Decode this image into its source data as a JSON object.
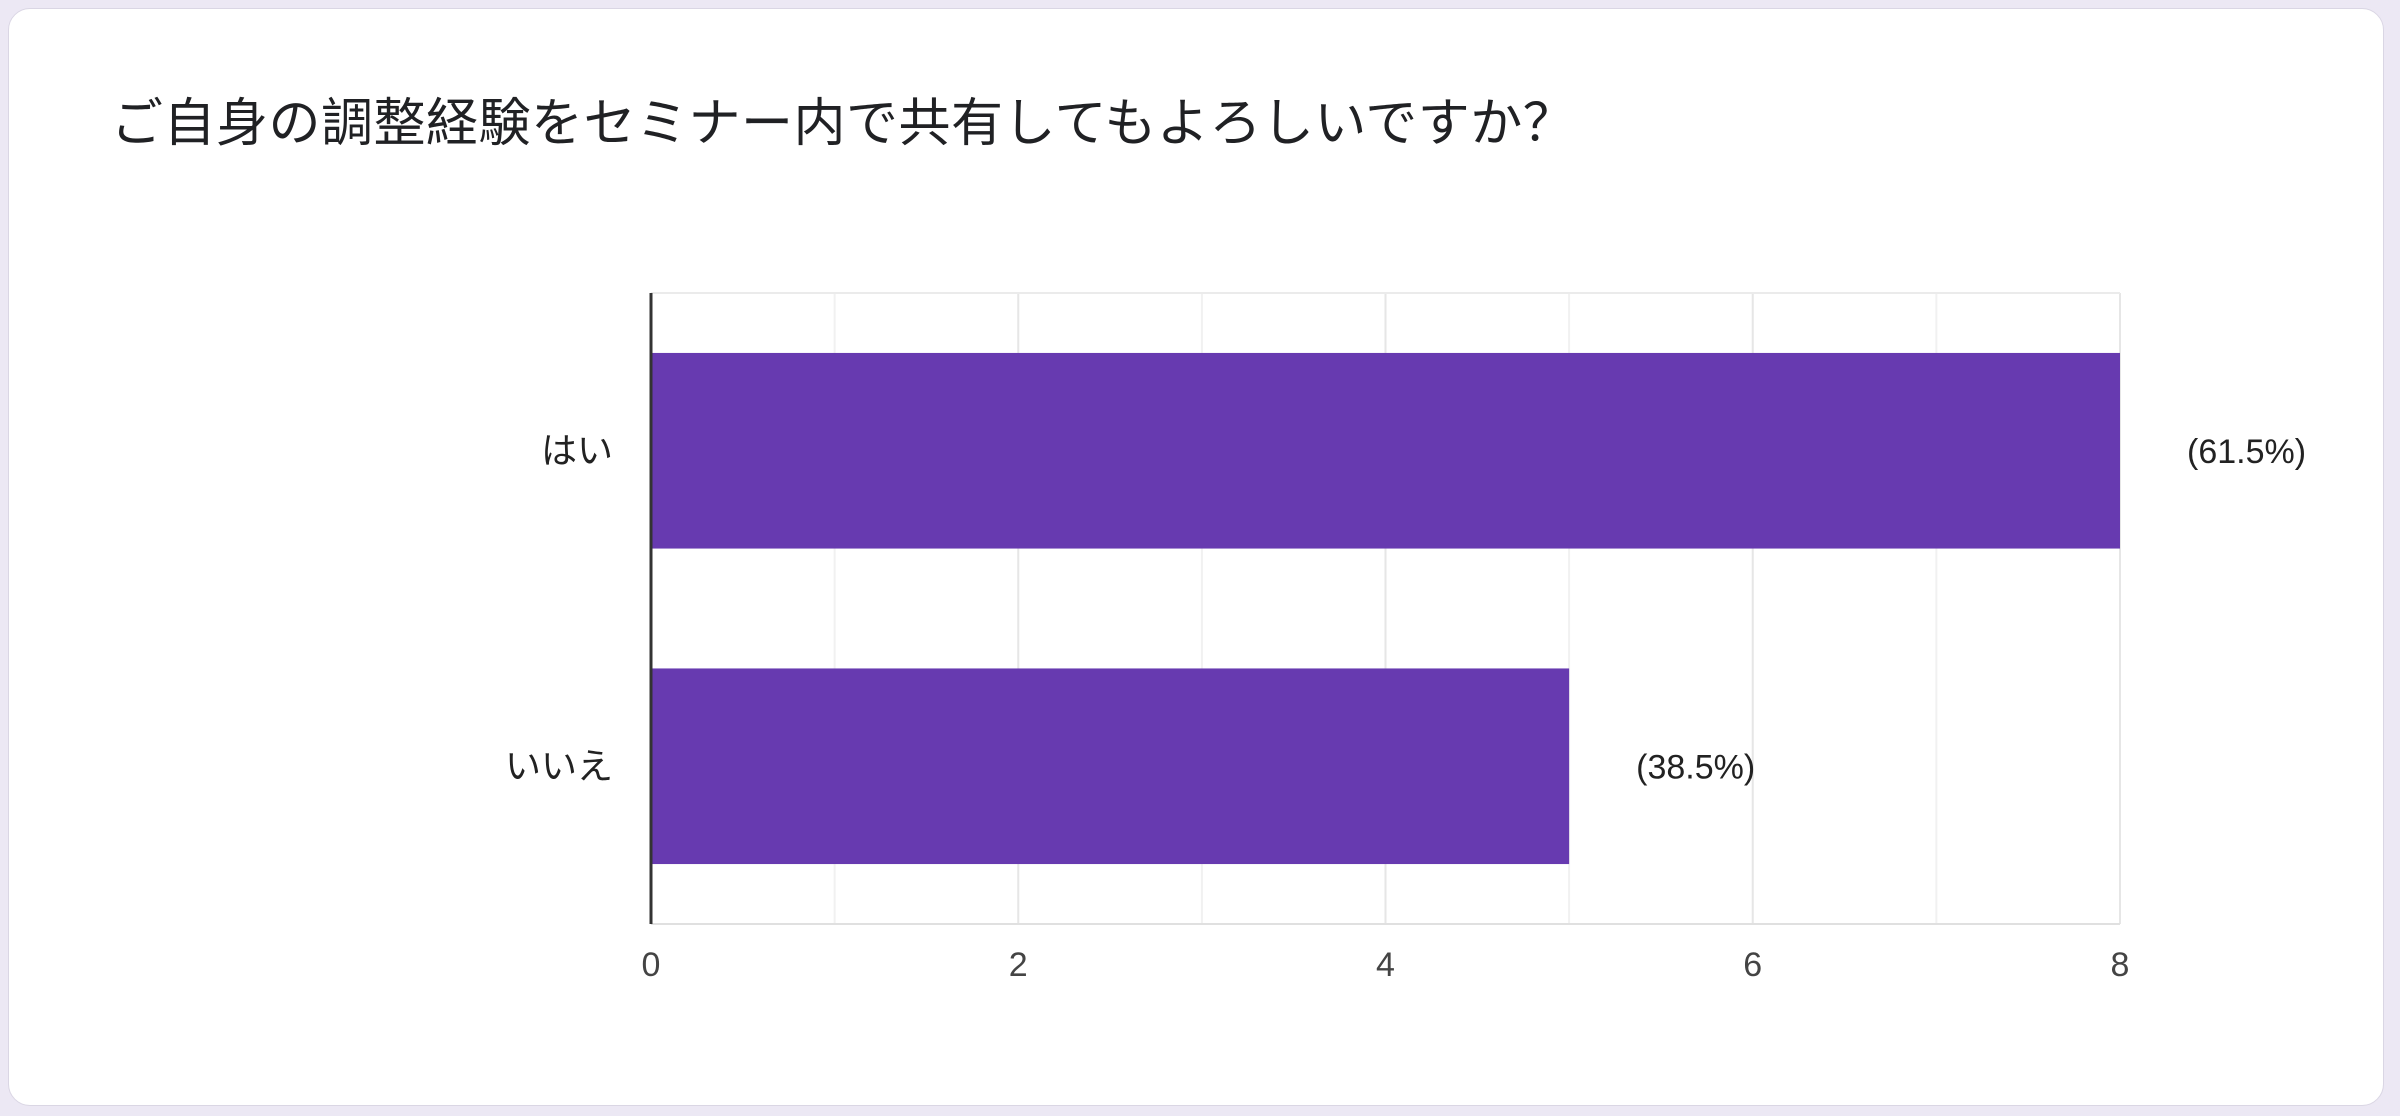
{
  "question": {
    "title": "ご自身の調整経験をセミナー内で共有してもよろしいですか？"
  },
  "colors": {
    "bar": "#673ab0",
    "gridline": "#ebebeb",
    "axis": "#333333",
    "text": "#202124"
  },
  "chart_data": {
    "type": "bar",
    "orientation": "horizontal",
    "title": "",
    "xlabel": "",
    "ylabel": "",
    "categories": [
      "はい",
      "いいえ"
    ],
    "values": [
      8,
      5
    ],
    "data_labels": [
      "(61.5%)",
      "(38.5%)"
    ],
    "xlim": [
      0,
      8
    ],
    "xticks": [
      "0",
      "2",
      "4",
      "6",
      "8"
    ],
    "grid": true
  }
}
